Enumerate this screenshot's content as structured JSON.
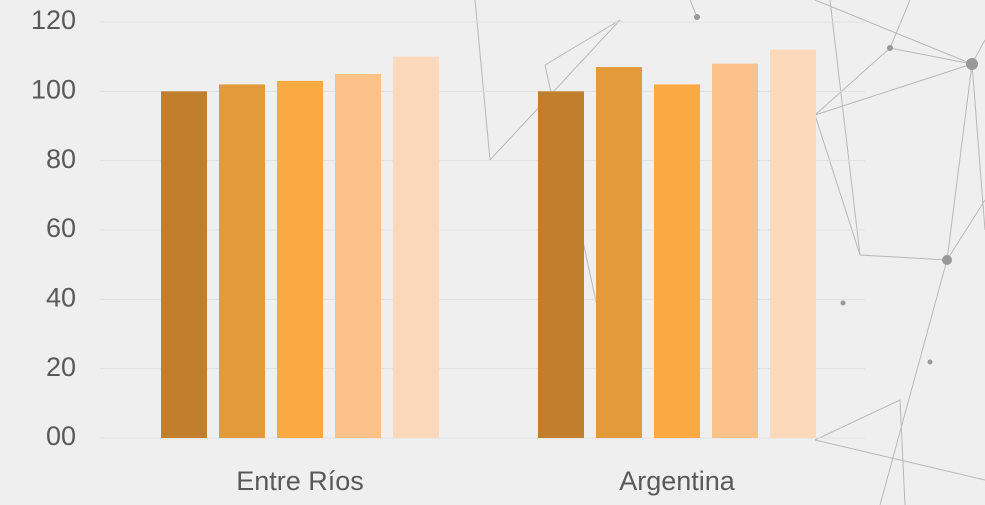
{
  "chart_data": {
    "type": "bar",
    "categories": [
      "Entre Ríos",
      "Argentina"
    ],
    "series": [
      {
        "color": "#c17f2e",
        "values": [
          100,
          100
        ]
      },
      {
        "color": "#e29a3a",
        "values": [
          102,
          107
        ]
      },
      {
        "color": "#fba942",
        "values": [
          103,
          102
        ]
      },
      {
        "color": "#fdc18a",
        "values": [
          105,
          108
        ]
      },
      {
        "color": "#fdd9bb",
        "values": [
          110,
          112
        ]
      }
    ],
    "ylim": [
      0,
      120
    ],
    "yticks": [
      {
        "value": 0,
        "label": "00"
      },
      20,
      40,
      60,
      80,
      100,
      120
    ],
    "grid": true
  }
}
